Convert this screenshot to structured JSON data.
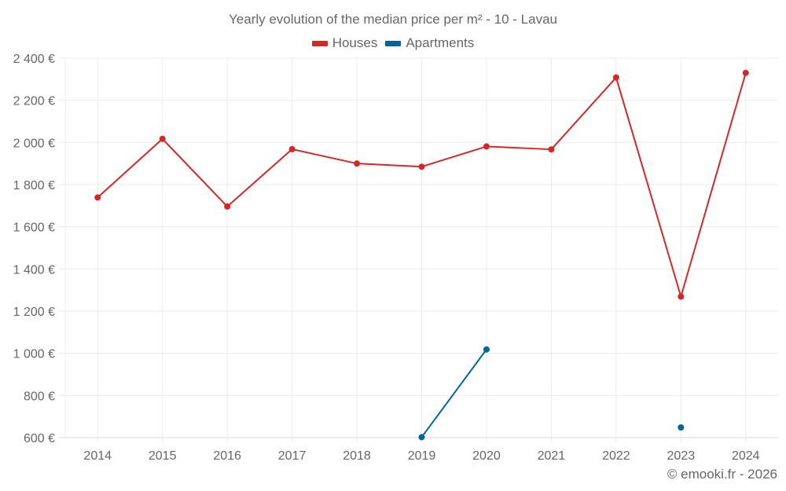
{
  "title": "Yearly evolution of the median price per m² - 10 - Lavau",
  "legend": [
    {
      "label": "Houses",
      "color": "#d62728"
    },
    {
      "label": "Apartments",
      "color": "#006699"
    }
  ],
  "credit": "© emooki.fr - 2026",
  "chart_data": {
    "type": "line",
    "title": "Yearly evolution of the median price per m² - 10 - Lavau",
    "xlabel": "",
    "ylabel": "",
    "categories": [
      "2014",
      "2015",
      "2016",
      "2017",
      "2018",
      "2019",
      "2020",
      "2021",
      "2022",
      "2023",
      "2024"
    ],
    "series": [
      {
        "name": "Houses",
        "color": "#d62728",
        "values": [
          1739,
          2017,
          1696,
          1968,
          1900,
          1885,
          1981,
          1967,
          2308,
          1269,
          2330
        ]
      },
      {
        "name": "Apartments",
        "color": "#006699",
        "values": [
          null,
          null,
          null,
          null,
          null,
          602,
          1018,
          null,
          null,
          648,
          null
        ]
      }
    ],
    "ylim": [
      600,
      2400
    ],
    "yticks": [
      600,
      800,
      1000,
      1200,
      1400,
      1600,
      1800,
      2000,
      2200,
      2400
    ],
    "ytick_labels": [
      "600 €",
      "800 €",
      "1 000 €",
      "1 200 €",
      "1 400 €",
      "1 600 €",
      "1 800 €",
      "2 000 €",
      "2 200 €",
      "2 400 €"
    ],
    "grid": true,
    "legend_position": "top"
  }
}
